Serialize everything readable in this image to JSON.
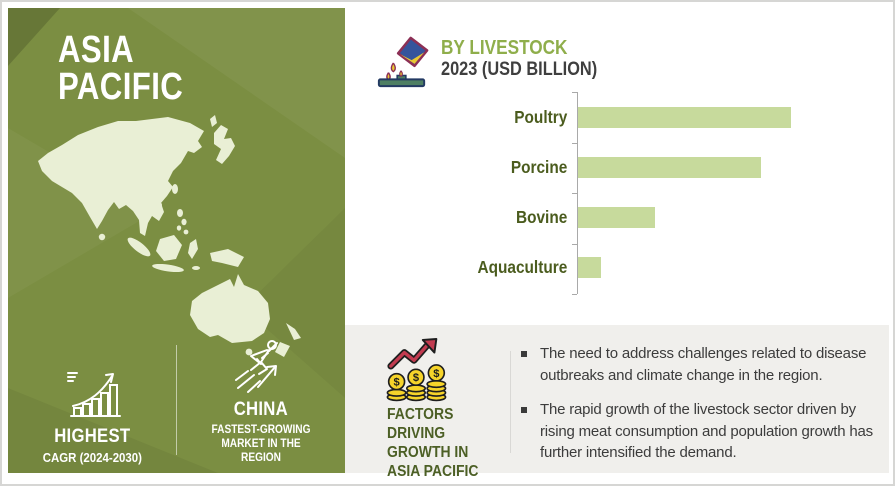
{
  "left_panel": {
    "region_title_line1": "ASIA",
    "region_title_line2": "PACIFIC",
    "map": "asia-pacific-silhouette",
    "stats": [
      {
        "icon": "growth-chart-icon",
        "title": "HIGHEST",
        "subtitle": "CAGR (2024-2030)"
      },
      {
        "icon": "sprinting-person-icon",
        "title": "CHINA",
        "subtitle": "FASTEST-GROWING MARKET IN THE REGION"
      }
    ],
    "colors": {
      "background": "#7b8e42",
      "map_fill": "#e9efd5",
      "text": "#ffffff"
    }
  },
  "chart_header": {
    "icon": "feed-pour-icon",
    "title": "BY LIVESTOCK",
    "subtitle": "2023 (USD BILLION)",
    "title_color": "#8fae4b",
    "subtitle_color": "#3f3f3f"
  },
  "chart_data": {
    "type": "bar",
    "orientation": "horizontal",
    "title": "BY LIVESTOCK",
    "subtitle": "2023 (USD BILLION)",
    "categories": [
      "Poultry",
      "Porcine",
      "Bovine",
      "Aquaculture"
    ],
    "values_relative_to_max_pct": [
      100,
      86,
      36,
      11
    ],
    "value_labels_shown": false,
    "value_axis_shown": false,
    "grid": "off",
    "legend": "none",
    "bar_color": "#c7da9c",
    "category_label_color": "#4b5c1e",
    "axis_color": "#a9a9a9"
  },
  "factors_panel": {
    "icon": "money-growth-icon",
    "heading": "FACTORS DRIVING GROWTH IN ASIA PACIFIC",
    "heading_color": "#4c5f25",
    "background": "#f0efec",
    "bullets": [
      "The need to address challenges related to disease outbreaks and climate change in the region.",
      "The rapid growth of the livestock sector driven by rising meat consumption and population growth has further intensified the demand."
    ]
  }
}
